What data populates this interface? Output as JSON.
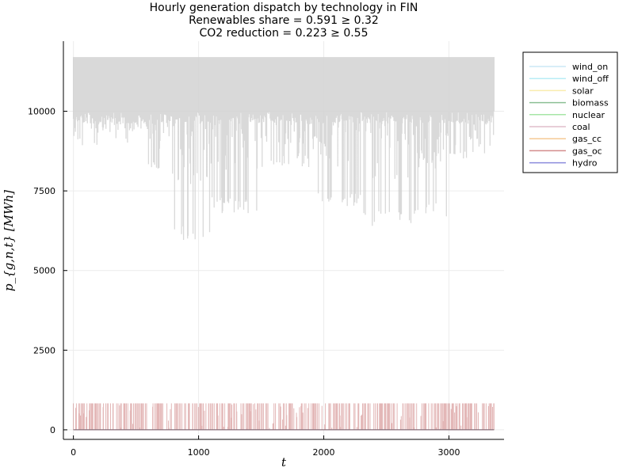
{
  "chart_data": {
    "type": "line",
    "title_lines": [
      "Hourly generation dispatch by technology in FIN",
      "Renewables share = 0.591 ≥ 0.32",
      "CO2 reduction = 0.223 ≥ 0.55"
    ],
    "xlabel": "t",
    "ylabel": "p_{g,n,t} [MWh]",
    "xlim": [
      -80,
      3440
    ],
    "ylim": [
      -300,
      12200
    ],
    "x_ticks": [
      0,
      1000,
      2000,
      3000
    ],
    "y_ticks": [
      0,
      2500,
      5000,
      7500,
      10000
    ],
    "grid": true,
    "legend_position": "outside-top-right",
    "x_count": 3360,
    "series": [
      {
        "name": "wind_on",
        "color": "#9fd5ef",
        "opacity": 0.35
      },
      {
        "name": "wind_off",
        "color": "#7fe0f0",
        "opacity": 0.35
      },
      {
        "name": "solar",
        "color": "#f5e06e",
        "opacity": 0.35
      },
      {
        "name": "biomass",
        "color": "#2e8b3e",
        "opacity": 0.35
      },
      {
        "name": "nuclear",
        "color": "#5fd35f",
        "opacity": 0.35
      },
      {
        "name": "coal",
        "color": "#c88aa0",
        "opacity": 0.35
      },
      {
        "name": "gas_cc",
        "color": "#f0a040",
        "opacity": 0.35
      },
      {
        "name": "gas_oc",
        "color": "#b03030",
        "opacity": 0.35
      },
      {
        "name": "hydro",
        "color": "#3030c0",
        "opacity": 0.35
      }
    ],
    "aggregate_band": {
      "upper": 11700,
      "dense_lower": 10000,
      "dip_ranges": [
        [
          0,
          200,
          8700
        ],
        [
          200,
          600,
          9000
        ],
        [
          600,
          800,
          8000
        ],
        [
          800,
          1100,
          5900
        ],
        [
          1100,
          1500,
          6800
        ],
        [
          1500,
          1900,
          8200
        ],
        [
          1900,
          2300,
          7000
        ],
        [
          2300,
          2700,
          6400
        ],
        [
          2700,
          3000,
          6700
        ],
        [
          3000,
          3360,
          8500
        ]
      ]
    },
    "gas_oc_peak": 830,
    "gas_oc_active_share": 0.35
  }
}
